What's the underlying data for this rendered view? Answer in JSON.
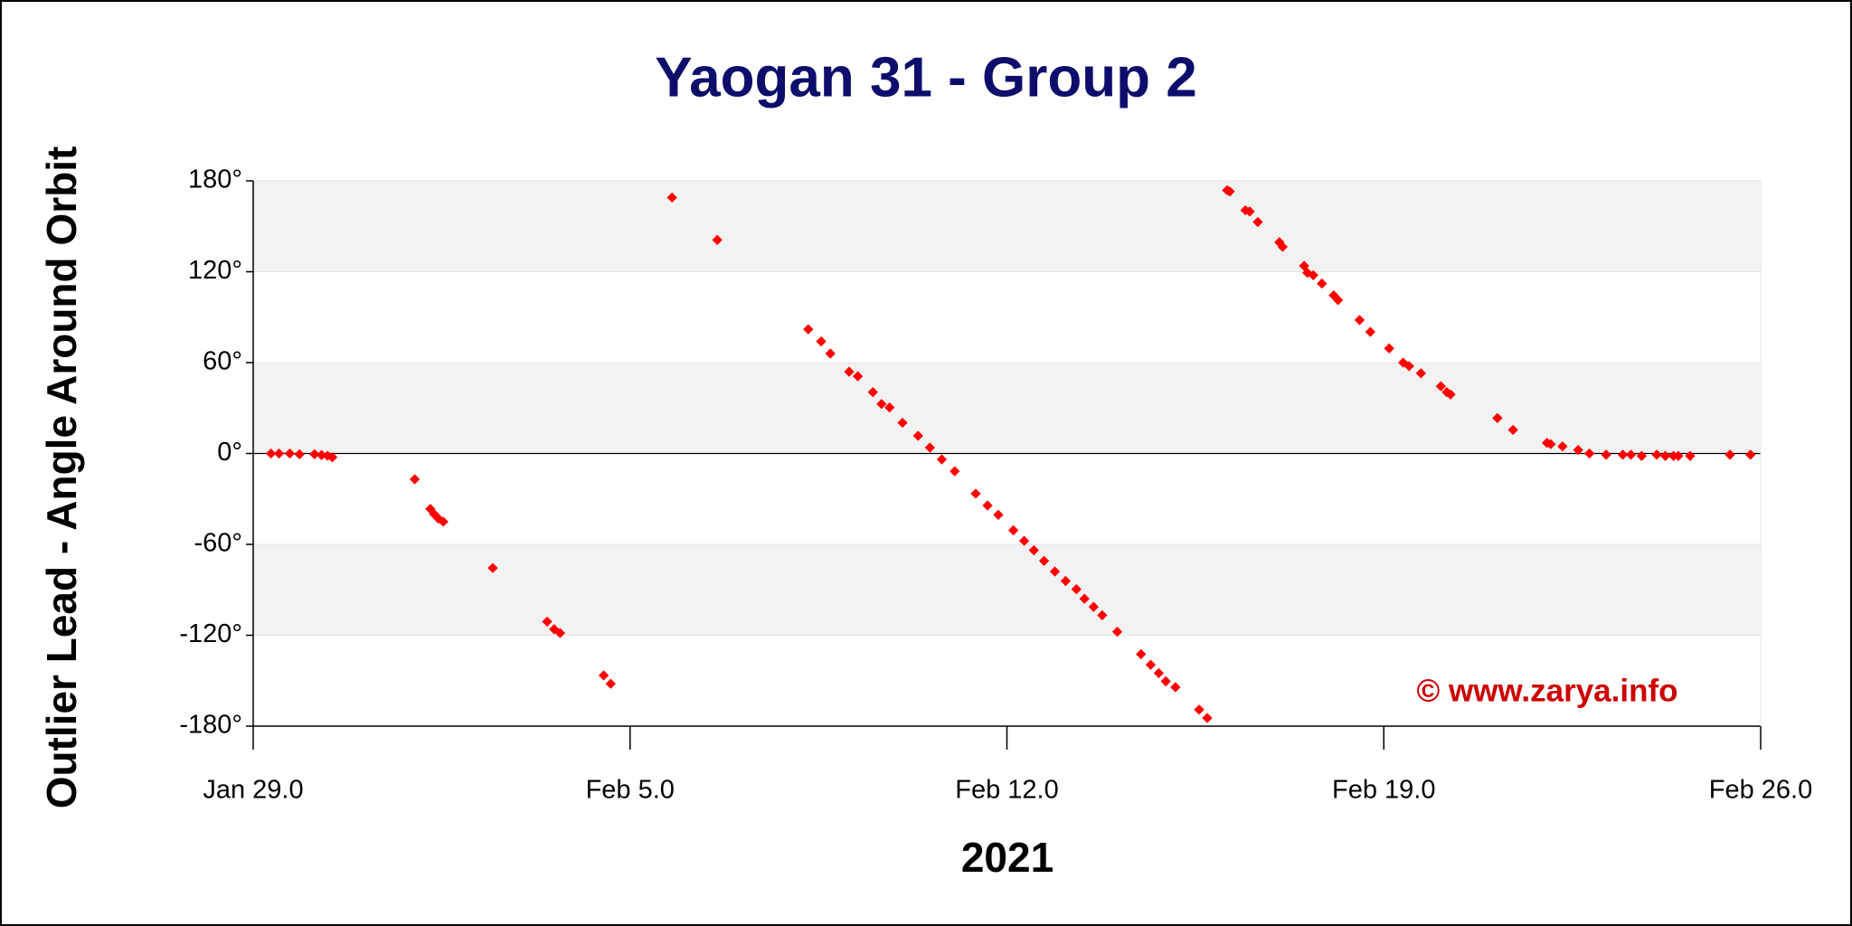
{
  "chart_data": {
    "type": "scatter",
    "title": "Yaogan 31 - Group 2",
    "y_label": "Outlier Lead - Angle Around Orbit",
    "x_label": "2021",
    "annotation": "© www.zarya.info",
    "series": [
      {
        "color": "#ff0000",
        "x": [
          29.33,
          29.48,
          29.68,
          29.86,
          30.14,
          30.27,
          30.38,
          30.47,
          32.0,
          32.29,
          32.36,
          32.44,
          32.53,
          33.45,
          34.46,
          34.59,
          34.7,
          35.51,
          35.64,
          36.78,
          37.62,
          39.31,
          39.55,
          39.72,
          40.07,
          40.23,
          40.51,
          40.67,
          40.82,
          41.06,
          41.35,
          41.57,
          41.79,
          42.03,
          42.42,
          42.64,
          42.84,
          43.12,
          43.32,
          43.5,
          43.69,
          43.89,
          44.09,
          44.29,
          44.44,
          44.61,
          44.77,
          45.05,
          45.49,
          45.67,
          45.82,
          45.95,
          46.13,
          46.57,
          46.72,
          47.09,
          47.14,
          47.43,
          47.51,
          47.66,
          48.06,
          48.12,
          48.52,
          48.58,
          48.69,
          48.85,
          49.07,
          49.15,
          49.55,
          49.75,
          50.1,
          50.36,
          50.47,
          50.69,
          51.06,
          51.17,
          51.24,
          52.11,
          52.4,
          53.03,
          53.1,
          53.32,
          53.61,
          53.82,
          54.13,
          54.44,
          54.59,
          54.79,
          55.07,
          55.23,
          55.38,
          55.47,
          55.69,
          56.43,
          56.81
        ],
        "values": [
          0,
          0,
          0,
          -0.5,
          -0.5,
          -1,
          -1.5,
          -2.5,
          -17,
          -36.6,
          -40,
          -43,
          -45,
          -75.6,
          -111,
          -116,
          -118.5,
          -146.5,
          -152,
          169,
          141,
          82,
          74,
          66,
          54,
          51,
          40.5,
          32.7,
          30.4,
          20.3,
          11.7,
          3.9,
          -3.9,
          -11.7,
          -26.5,
          -34.3,
          -40.5,
          -50.7,
          -57.7,
          -63.9,
          -70.9,
          -77.9,
          -84.2,
          -89.6,
          -95.9,
          -101.3,
          -106.8,
          -117.7,
          -132.5,
          -139.5,
          -145,
          -150.4,
          -154.3,
          -169.1,
          -174.6,
          173.8,
          173,
          160.6,
          159.8,
          152.8,
          139.5,
          136.4,
          123.9,
          119.3,
          117.7,
          112.2,
          104.4,
          101.3,
          88.1,
          80.3,
          69.4,
          60,
          57.7,
          53,
          44.4,
          40.5,
          39,
          23.4,
          15.6,
          7,
          6.2,
          4.7,
          2.3,
          0,
          -0.8,
          -0.8,
          -0.8,
          -1.6,
          -0.8,
          -1.6,
          -1.6,
          -1.6,
          -1.6,
          -0.8,
          -0.8
        ]
      }
    ],
    "xlim": [
      29,
      57
    ],
    "xticks": [
      {
        "value": 29,
        "label": "Jan 29.0"
      },
      {
        "value": 36,
        "label": "Feb 5.0"
      },
      {
        "value": 43,
        "label": "Feb 12.0"
      },
      {
        "value": 50,
        "label": "Feb 19.0"
      },
      {
        "value": 57,
        "label": "Feb 26.0"
      }
    ],
    "ylim": [
      -180,
      180
    ],
    "yticks": [
      {
        "value": -180,
        "label": "-180°"
      },
      {
        "value": -120,
        "label": "-120°"
      },
      {
        "value": -60,
        "label": "-60°"
      },
      {
        "value": 0,
        "label": "0°"
      },
      {
        "value": 60,
        "label": "60°"
      },
      {
        "value": 120,
        "label": "120°"
      },
      {
        "value": 180,
        "label": "180°"
      }
    ],
    "bands": true,
    "grid": true
  }
}
